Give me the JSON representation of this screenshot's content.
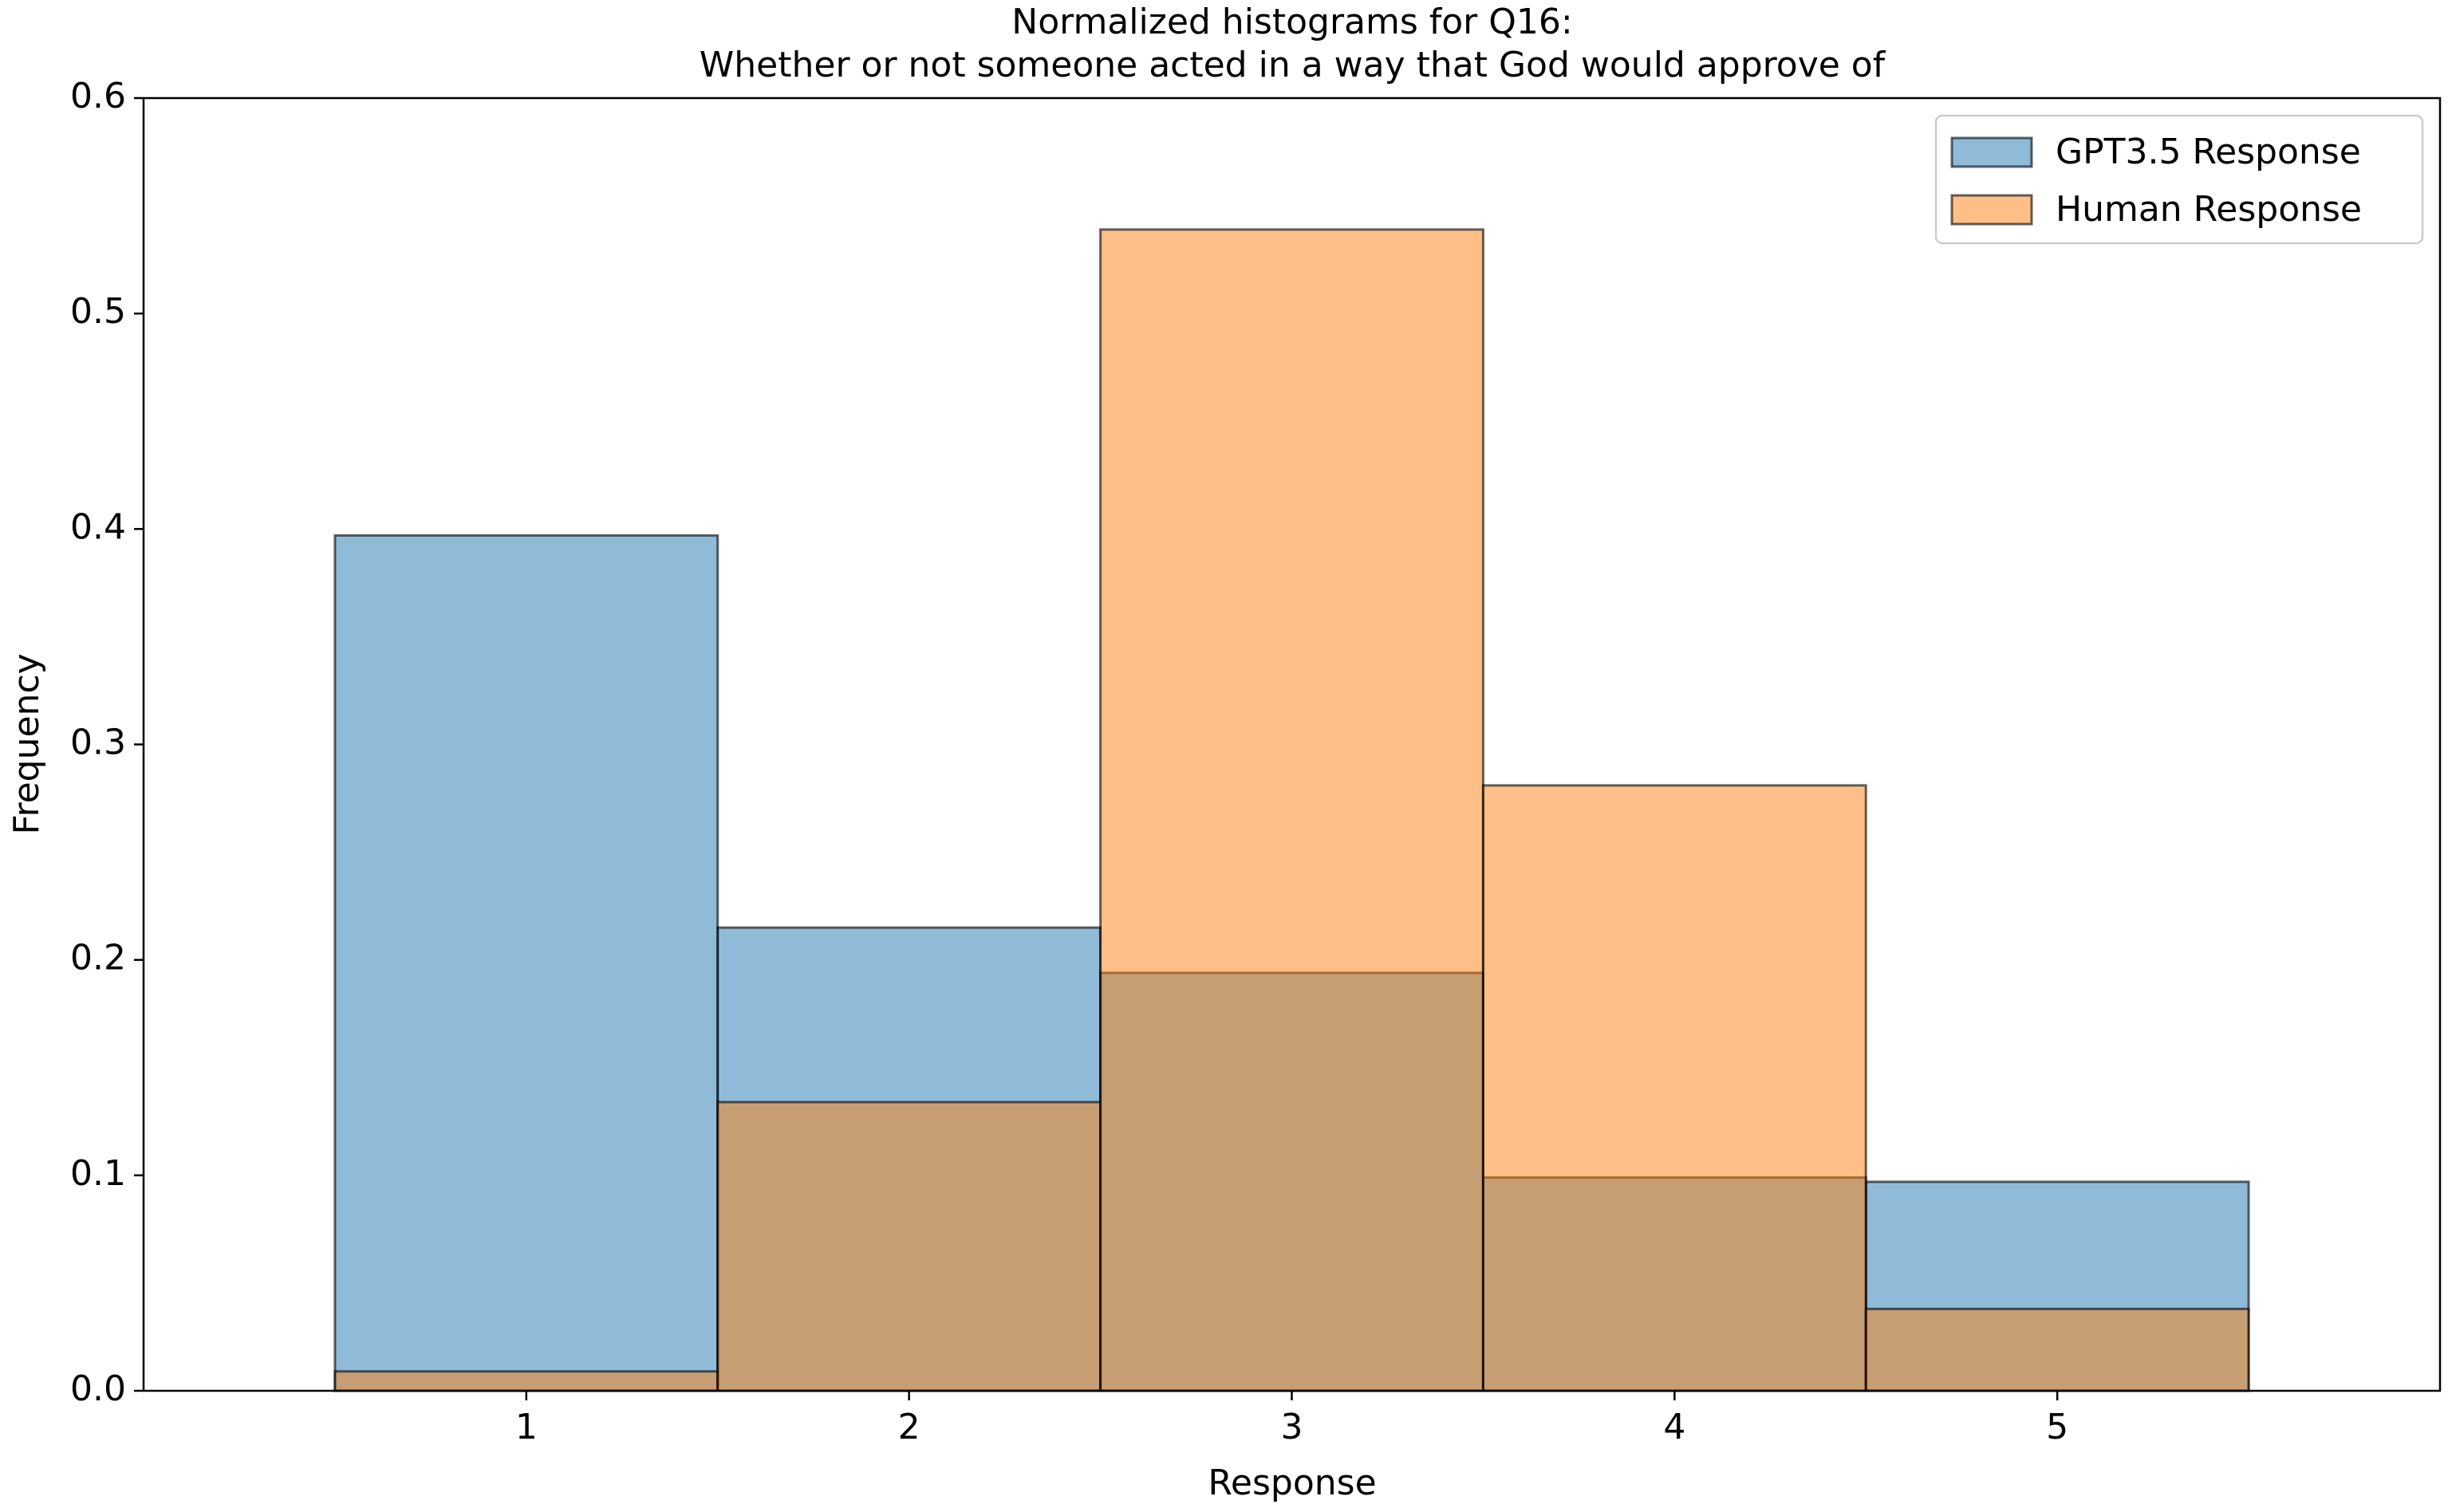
{
  "chart_data": {
    "type": "histogram",
    "title": [
      "Normalized histograms for Q16:",
      "Whether or not someone acted in a way that God would approve of"
    ],
    "x_label": "Response",
    "y_label": "Frequency",
    "bins": [
      0.5,
      1.5,
      2.5,
      3.5,
      4.5,
      5.5
    ],
    "series": [
      {
        "name": "GPT3.5 Response",
        "color": "#1f77b4",
        "values": [
          0.397,
          0.215,
          0.194,
          0.099,
          0.097
        ]
      },
      {
        "name": "Human Response",
        "color": "#ff7f0e",
        "values": [
          0.009,
          0.134,
          0.539,
          0.281,
          0.038
        ]
      }
    ],
    "xlim": [
      0,
      6
    ],
    "xticks": [
      1,
      2,
      3,
      4,
      5
    ],
    "ylim": [
      0,
      0.6
    ],
    "yticks": [
      0.0,
      0.1,
      0.2,
      0.3,
      0.4,
      0.5,
      0.6
    ],
    "legend": "upper right",
    "opacity": 0.5
  }
}
